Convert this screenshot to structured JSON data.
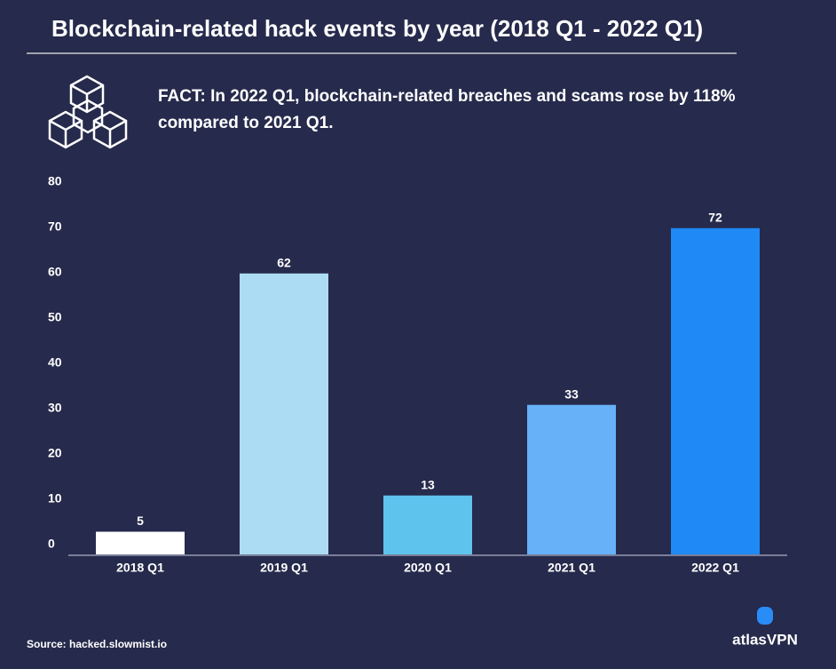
{
  "chart_data": {
    "type": "bar",
    "title": "Blockchain-related hack events by year (2018 Q1 - 2022 Q1)",
    "fact": "FACT: In 2022 Q1, blockchain-related breaches and scams rose by 118% compared to 2021 Q1.",
    "categories": [
      "2018 Q1",
      "2019 Q1",
      "2020 Q1",
      "2021 Q1",
      "2022 Q1"
    ],
    "values": [
      5,
      62,
      13,
      33,
      72
    ],
    "colors": [
      "#ffffff",
      "#abdcf3",
      "#5ec4ee",
      "#66b1f7",
      "#1f89f6"
    ],
    "ylim": [
      0,
      80
    ],
    "yticks": [
      0,
      10,
      20,
      30,
      40,
      50,
      60,
      70,
      80
    ],
    "grid": false,
    "source": "Source: hacked.slowmist.io",
    "brand": "atlasVPN"
  }
}
